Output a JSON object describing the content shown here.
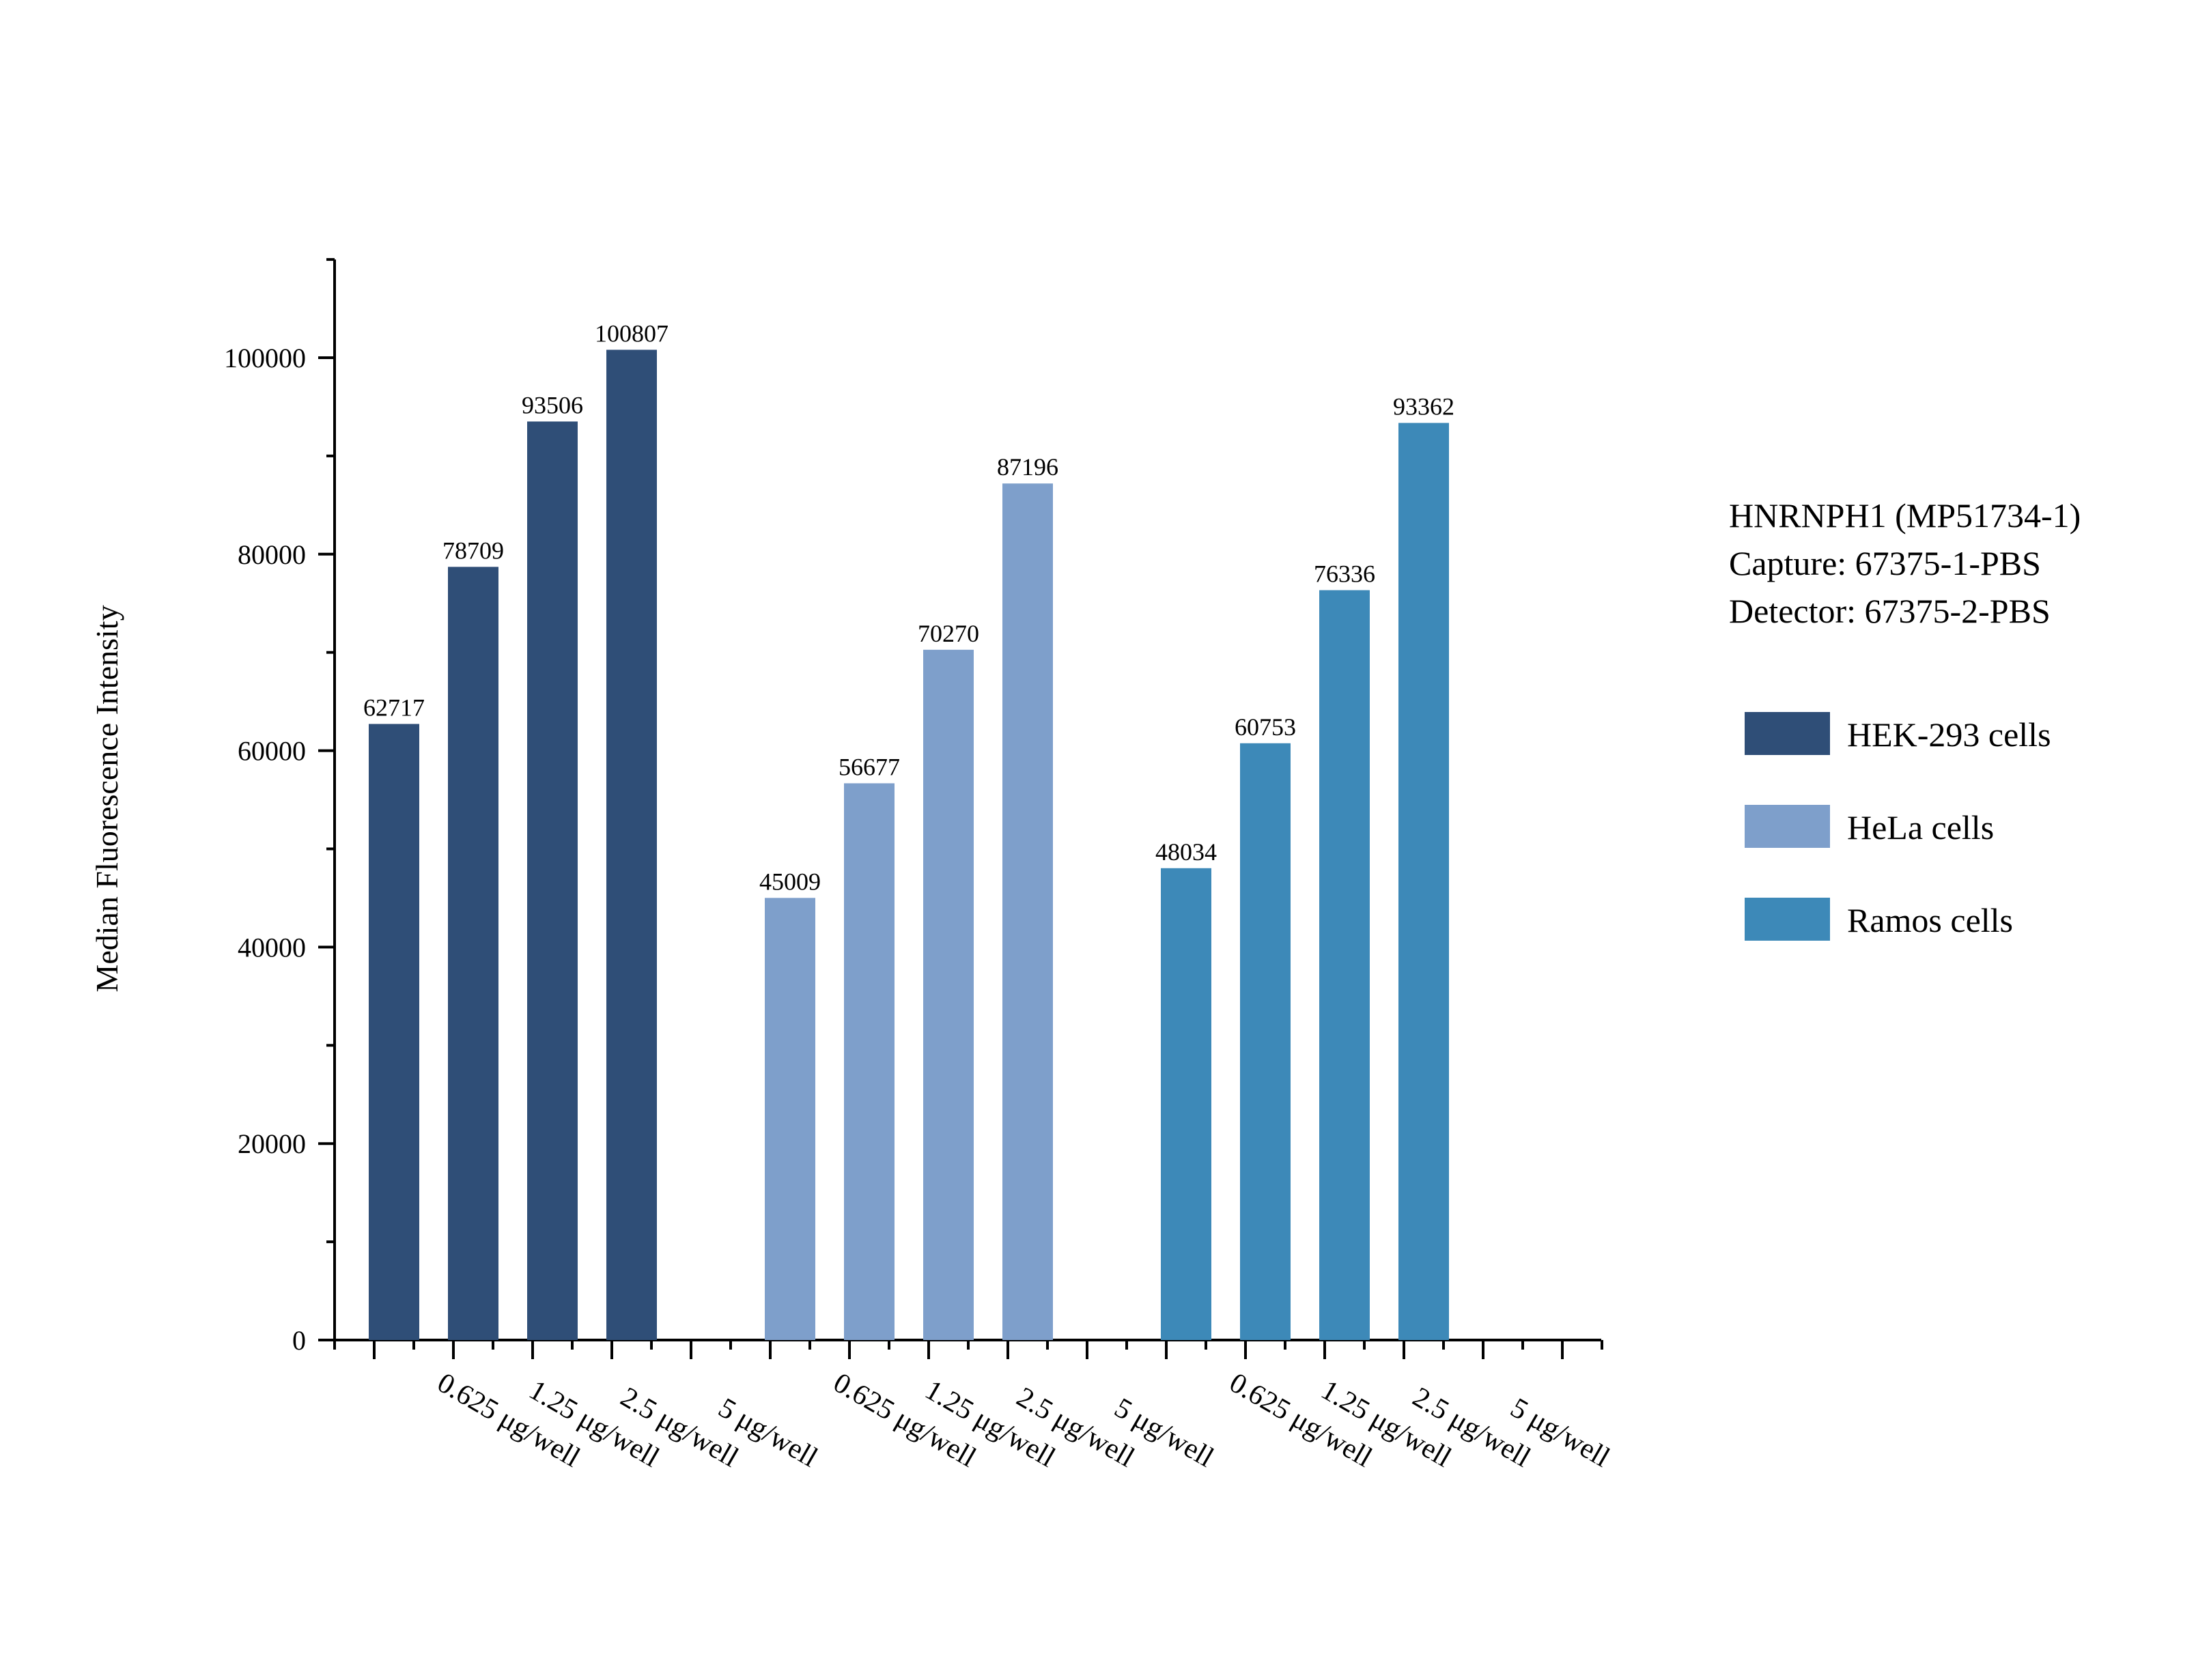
{
  "chart_data": {
    "type": "bar",
    "ylabel": "Median Fluorescence Intensity",
    "xlabel": "",
    "ylim": [
      0,
      110000
    ],
    "yticks": [
      0,
      20000,
      40000,
      60000,
      80000,
      100000
    ],
    "grid": false,
    "legend_position": "right",
    "annotation_lines": [
      "HNRNPH1 (MP51734-1)",
      "Capture: 67375-1-PBS",
      "Detector: 67375-2-PBS"
    ],
    "categories": [
      "0.625 μg/well",
      "1.25 μg/well",
      "2.5 μg/well",
      "5 μg/well"
    ],
    "series": [
      {
        "name": "HEK-293 cells",
        "color": "#2f4e77",
        "values": [
          62717,
          78709,
          93506,
          100807
        ]
      },
      {
        "name": "HeLa cells",
        "color": "#7e9fcb",
        "values": [
          45009,
          56677,
          70270,
          87196
        ]
      },
      {
        "name": "Ramos cells",
        "color": "#3d89b8",
        "values": [
          48034,
          60753,
          76336,
          93362
        ]
      }
    ]
  }
}
